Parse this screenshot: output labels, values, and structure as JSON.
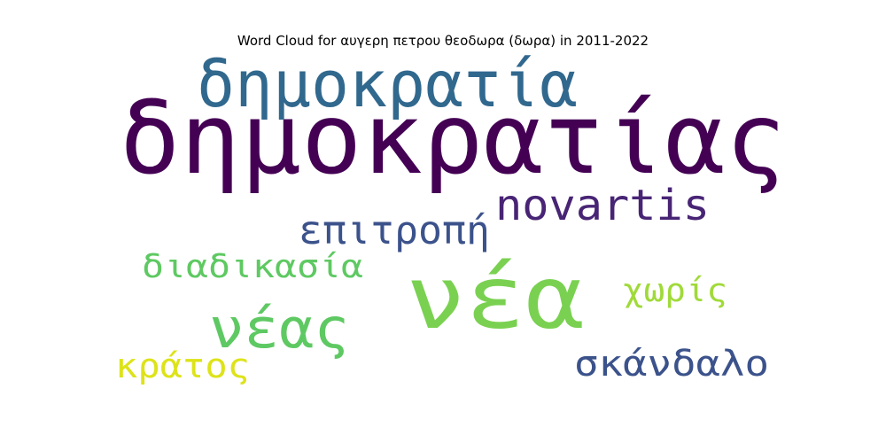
{
  "chart_data": {
    "type": "wordcloud",
    "title": "Word Cloud for αυγερη πετρου θεοδωρα (δωρα) in 2011-2022",
    "words": [
      {
        "text": "δημοκρατίας",
        "weight": 1.0,
        "color": "#440154"
      },
      {
        "text": "νέα",
        "weight": 0.82,
        "color": "#7ad151"
      },
      {
        "text": "δημοκρατία",
        "weight": 0.6,
        "color": "#31688e"
      },
      {
        "text": "νέας",
        "weight": 0.55,
        "color": "#5ec962"
      },
      {
        "text": "novartis",
        "weight": 0.45,
        "color": "#482475"
      },
      {
        "text": "επιτροπή",
        "weight": 0.4,
        "color": "#3b528b"
      },
      {
        "text": "σκάνδαλο",
        "weight": 0.4,
        "color": "#3b528b"
      },
      {
        "text": "κράτος",
        "weight": 0.36,
        "color": "#dde318"
      },
      {
        "text": "διαδικασία",
        "weight": 0.35,
        "color": "#5ec962"
      },
      {
        "text": "χωρίς",
        "weight": 0.33,
        "color": "#a0da39"
      }
    ]
  }
}
